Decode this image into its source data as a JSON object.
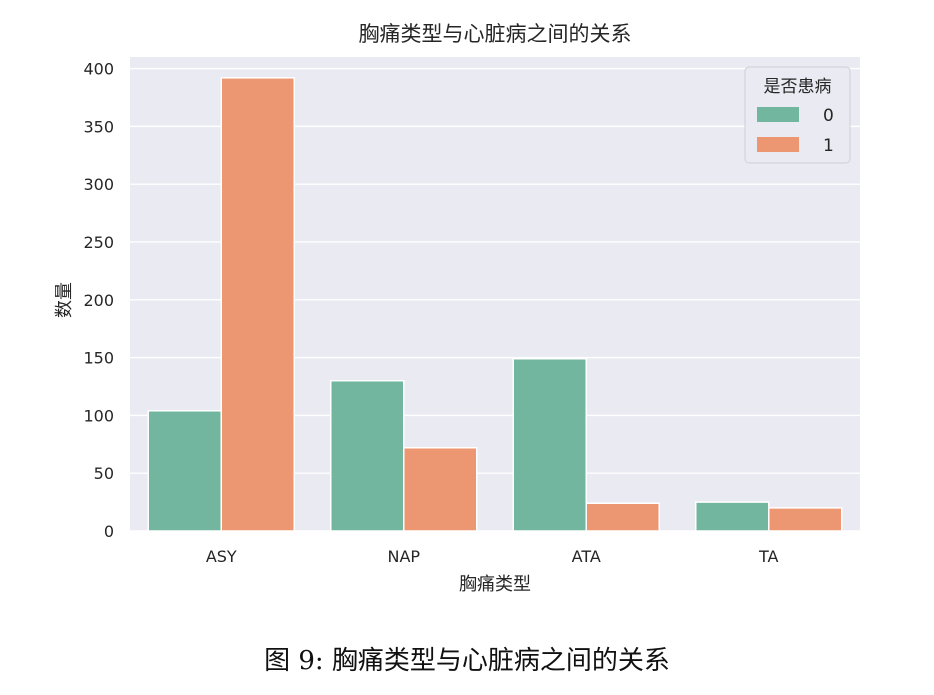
{
  "chart_data": {
    "type": "bar",
    "title": "胸痛类型与心脏病之间的关系",
    "xlabel": "胸痛类型",
    "ylabel": "数量",
    "categories": [
      "ASY",
      "NAP",
      "ATA",
      "TA"
    ],
    "series": [
      {
        "name": "0",
        "values": [
          104,
          130,
          149,
          25
        ],
        "color": "#73b69f"
      },
      {
        "name": "1",
        "values": [
          392,
          72,
          24,
          20
        ],
        "color": "#ec9771"
      }
    ],
    "ylim": [
      0,
      410
    ],
    "yticks": [
      0,
      50,
      100,
      150,
      200,
      250,
      300,
      350,
      400
    ],
    "grid": true,
    "legend": {
      "title": "是否患病",
      "placement": "top-right"
    },
    "background_color": "#eaeaf2"
  },
  "caption": "图 9: 胸痛类型与心脏病之间的关系"
}
